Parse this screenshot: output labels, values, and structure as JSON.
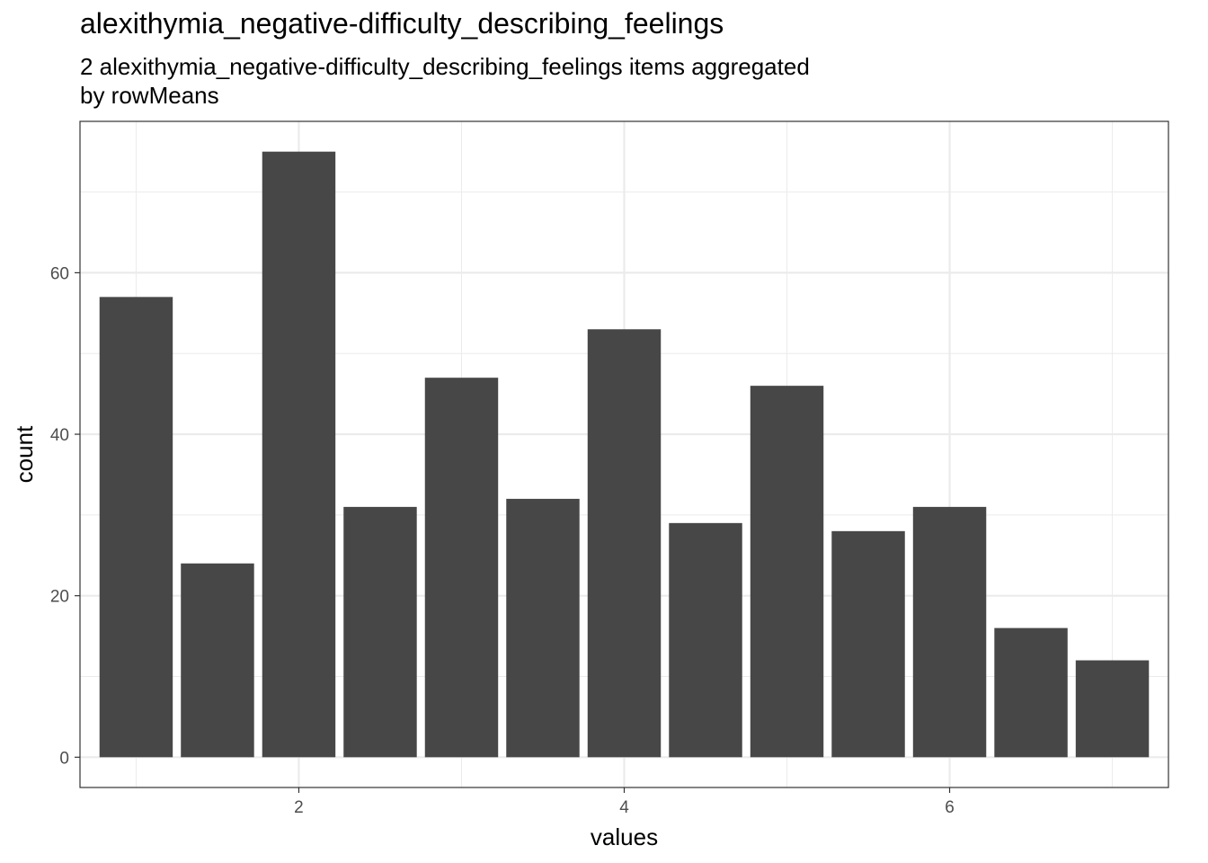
{
  "chart_data": {
    "type": "bar",
    "title": "alexithymia_negative-difficulty_describing_feelings",
    "subtitle_lines": [
      "2 alexithymia_negative-difficulty_describing_feelings items aggregated",
      "by rowMeans"
    ],
    "xlabel": "values",
    "ylabel": "count",
    "x": [
      1,
      1.5,
      2,
      2.5,
      3,
      3.5,
      4,
      4.5,
      5,
      5.5,
      6,
      6.5,
      7
    ],
    "values": [
      57,
      24,
      75,
      31,
      47,
      32,
      53,
      29,
      46,
      28,
      31,
      16,
      12
    ],
    "bar_width": 0.45,
    "xlim": [
      0.655,
      7.345
    ],
    "ylim": [
      -3.75,
      78.75
    ],
    "x_ticks": [
      2,
      4,
      6
    ],
    "x_minor_ticks": [
      1,
      3,
      5,
      7
    ],
    "y_ticks": [
      0,
      20,
      40,
      60
    ],
    "y_minor_ticks": [
      10,
      30,
      50,
      70
    ],
    "bar_color": "#474747",
    "grid_color": "#ebebeb",
    "grid": true
  }
}
